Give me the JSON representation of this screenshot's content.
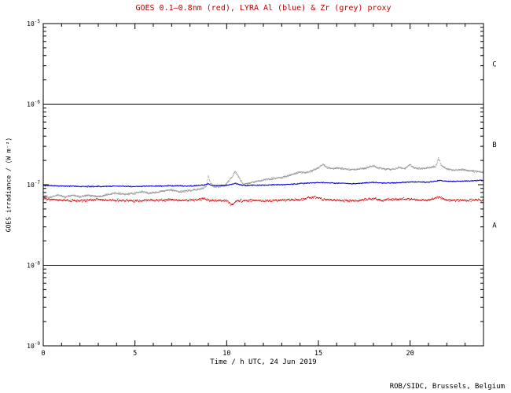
{
  "chart_data": {
    "type": "scatter",
    "title": "GOES 0.1–0.8nm (red), LYRA Al (blue) & Zr (grey) proxy",
    "xlabel": "Time / h UTC, 24 Jun 2019",
    "ylabel": "GOES irradiance / (W m⁻²)",
    "credit": "ROB/SIDC, Brussels, Belgium",
    "title_color": "#bb0000",
    "axis_color": "#000000",
    "xlim": [
      0,
      24
    ],
    "ylim": [
      1e-09,
      1e-05
    ],
    "xticks": [
      0,
      5,
      10,
      15,
      20
    ],
    "ytick_exponents": [
      -5,
      -6,
      -7,
      -8,
      -9
    ],
    "x_minor_step": 1,
    "grid": false,
    "legend": "encoded in title colors",
    "class_boundaries": [
      1e-06,
      1e-08
    ],
    "class_labels": [
      {
        "label": "C",
        "value": 3.16e-06
      },
      {
        "label": "B",
        "value": 3.16e-07
      },
      {
        "label": "A",
        "value": 3.16e-08
      }
    ],
    "series": [
      {
        "name": "LYRA Zr proxy",
        "color": "#999999",
        "noise": 0.04,
        "points_per_day": 1400,
        "anchors": [
          [
            0,
            7.3e-08
          ],
          [
            0.4,
            6.9e-08
          ],
          [
            0.8,
            7.5e-08
          ],
          [
            1.2,
            7e-08
          ],
          [
            1.6,
            7.4e-08
          ],
          [
            2,
            7.1e-08
          ],
          [
            2.5,
            7.4e-08
          ],
          [
            3,
            7.1e-08
          ],
          [
            3.5,
            7.6e-08
          ],
          [
            4,
            7.9e-08
          ],
          [
            4.5,
            7.6e-08
          ],
          [
            5,
            7.8e-08
          ],
          [
            5.4,
            8.2e-08
          ],
          [
            5.8,
            7.8e-08
          ],
          [
            6.2,
            8.1e-08
          ],
          [
            6.6,
            8.4e-08
          ],
          [
            7,
            8.6e-08
          ],
          [
            7.4,
            8.1e-08
          ],
          [
            7.8,
            8.4e-08
          ],
          [
            8.2,
            8.6e-08
          ],
          [
            8.6,
            8.9e-08
          ],
          [
            8.9,
            9.4e-08
          ],
          [
            9.0,
            1.3e-07
          ],
          [
            9.1,
            1.05e-07
          ],
          [
            9.3,
            9.5e-08
          ],
          [
            9.6,
            9.4e-08
          ],
          [
            9.9,
            9.7e-08
          ],
          [
            10.1,
            1.1e-07
          ],
          [
            10.3,
            1.25e-07
          ],
          [
            10.45,
            1.45e-07
          ],
          [
            10.6,
            1.3e-07
          ],
          [
            10.75,
            1.15e-07
          ],
          [
            10.9,
            1.02e-07
          ],
          [
            11.2,
            1.04e-07
          ],
          [
            11.5,
            1.08e-07
          ],
          [
            12,
            1.14e-07
          ],
          [
            12.5,
            1.19e-07
          ],
          [
            13,
            1.23e-07
          ],
          [
            13.5,
            1.32e-07
          ],
          [
            14,
            1.43e-07
          ],
          [
            14.3,
            1.4e-07
          ],
          [
            14.6,
            1.48e-07
          ],
          [
            15,
            1.62e-07
          ],
          [
            15.25,
            1.8e-07
          ],
          [
            15.5,
            1.63e-07
          ],
          [
            15.8,
            1.58e-07
          ],
          [
            16.1,
            1.62e-07
          ],
          [
            16.4,
            1.56e-07
          ],
          [
            16.8,
            1.54e-07
          ],
          [
            17.2,
            1.56e-07
          ],
          [
            17.6,
            1.6e-07
          ],
          [
            18,
            1.73e-07
          ],
          [
            18.2,
            1.62e-07
          ],
          [
            18.6,
            1.57e-07
          ],
          [
            19,
            1.55e-07
          ],
          [
            19.4,
            1.63e-07
          ],
          [
            19.7,
            1.58e-07
          ],
          [
            20,
            1.78e-07
          ],
          [
            20.2,
            1.63e-07
          ],
          [
            20.6,
            1.58e-07
          ],
          [
            21,
            1.62e-07
          ],
          [
            21.4,
            1.68e-07
          ],
          [
            21.55,
            2.15e-07
          ],
          [
            21.7,
            1.75e-07
          ],
          [
            22,
            1.56e-07
          ],
          [
            22.4,
            1.51e-07
          ],
          [
            22.8,
            1.54e-07
          ],
          [
            23.2,
            1.5e-07
          ],
          [
            23.6,
            1.46e-07
          ],
          [
            24,
            1.42e-07
          ]
        ]
      },
      {
        "name": "LYRA Al proxy",
        "color": "#0000cc",
        "noise": 0.022,
        "points_per_day": 950,
        "anchors": [
          [
            0,
            9.8e-08
          ],
          [
            1,
            9.6e-08
          ],
          [
            2,
            9.5e-08
          ],
          [
            3,
            9.5e-08
          ],
          [
            4,
            9.6e-08
          ],
          [
            5,
            9.5e-08
          ],
          [
            6,
            9.6e-08
          ],
          [
            7,
            9.7e-08
          ],
          [
            8,
            9.6e-08
          ],
          [
            8.8,
            9.9e-08
          ],
          [
            9.0,
            1.03e-07
          ],
          [
            9.2,
            9.8e-08
          ],
          [
            10,
            9.8e-08
          ],
          [
            10.3,
            1.02e-07
          ],
          [
            10.5,
            1.04e-07
          ],
          [
            10.7,
            1e-07
          ],
          [
            11,
            9.8e-08
          ],
          [
            12,
            9.9e-08
          ],
          [
            13,
            1e-07
          ],
          [
            14,
            1.03e-07
          ],
          [
            14.8,
            1.06e-07
          ],
          [
            15.2,
            1.06e-07
          ],
          [
            16,
            1.04e-07
          ],
          [
            17,
            1.03e-07
          ],
          [
            18,
            1.07e-07
          ],
          [
            18.5,
            1.05e-07
          ],
          [
            19,
            1.05e-07
          ],
          [
            20,
            1.08e-07
          ],
          [
            21,
            1.07e-07
          ],
          [
            21.6,
            1.13e-07
          ],
          [
            22,
            1.1e-07
          ],
          [
            23,
            1.11e-07
          ],
          [
            24,
            1.14e-07
          ]
        ]
      },
      {
        "name": "GOES 0.1-0.8nm",
        "color": "#cc0000",
        "noise": 0.05,
        "points_per_day": 950,
        "anchors": [
          [
            0,
            6.6e-08
          ],
          [
            1,
            6.4e-08
          ],
          [
            2,
            6.3e-08
          ],
          [
            3,
            6.5e-08
          ],
          [
            4,
            6.4e-08
          ],
          [
            5,
            6.3e-08
          ],
          [
            6,
            6.4e-08
          ],
          [
            7,
            6.5e-08
          ],
          [
            8,
            6.4e-08
          ],
          [
            8.8,
            6.7e-08
          ],
          [
            9.1,
            6.4e-08
          ],
          [
            10,
            6.3e-08
          ],
          [
            10.3,
            5.6e-08
          ],
          [
            10.5,
            6.2e-08
          ],
          [
            11,
            6.4e-08
          ],
          [
            12,
            6.3e-08
          ],
          [
            13,
            6.4e-08
          ],
          [
            14,
            6.6e-08
          ],
          [
            14.8,
            7e-08
          ],
          [
            15.2,
            6.6e-08
          ],
          [
            16,
            6.4e-08
          ],
          [
            17,
            6.3e-08
          ],
          [
            18,
            6.7e-08
          ],
          [
            18.5,
            6.4e-08
          ],
          [
            19,
            6.6e-08
          ],
          [
            20,
            6.6e-08
          ],
          [
            20.5,
            6.4e-08
          ],
          [
            21,
            6.5e-08
          ],
          [
            21.6,
            7e-08
          ],
          [
            22,
            6.4e-08
          ],
          [
            23,
            6.4e-08
          ],
          [
            24,
            6.5e-08
          ]
        ]
      }
    ]
  }
}
